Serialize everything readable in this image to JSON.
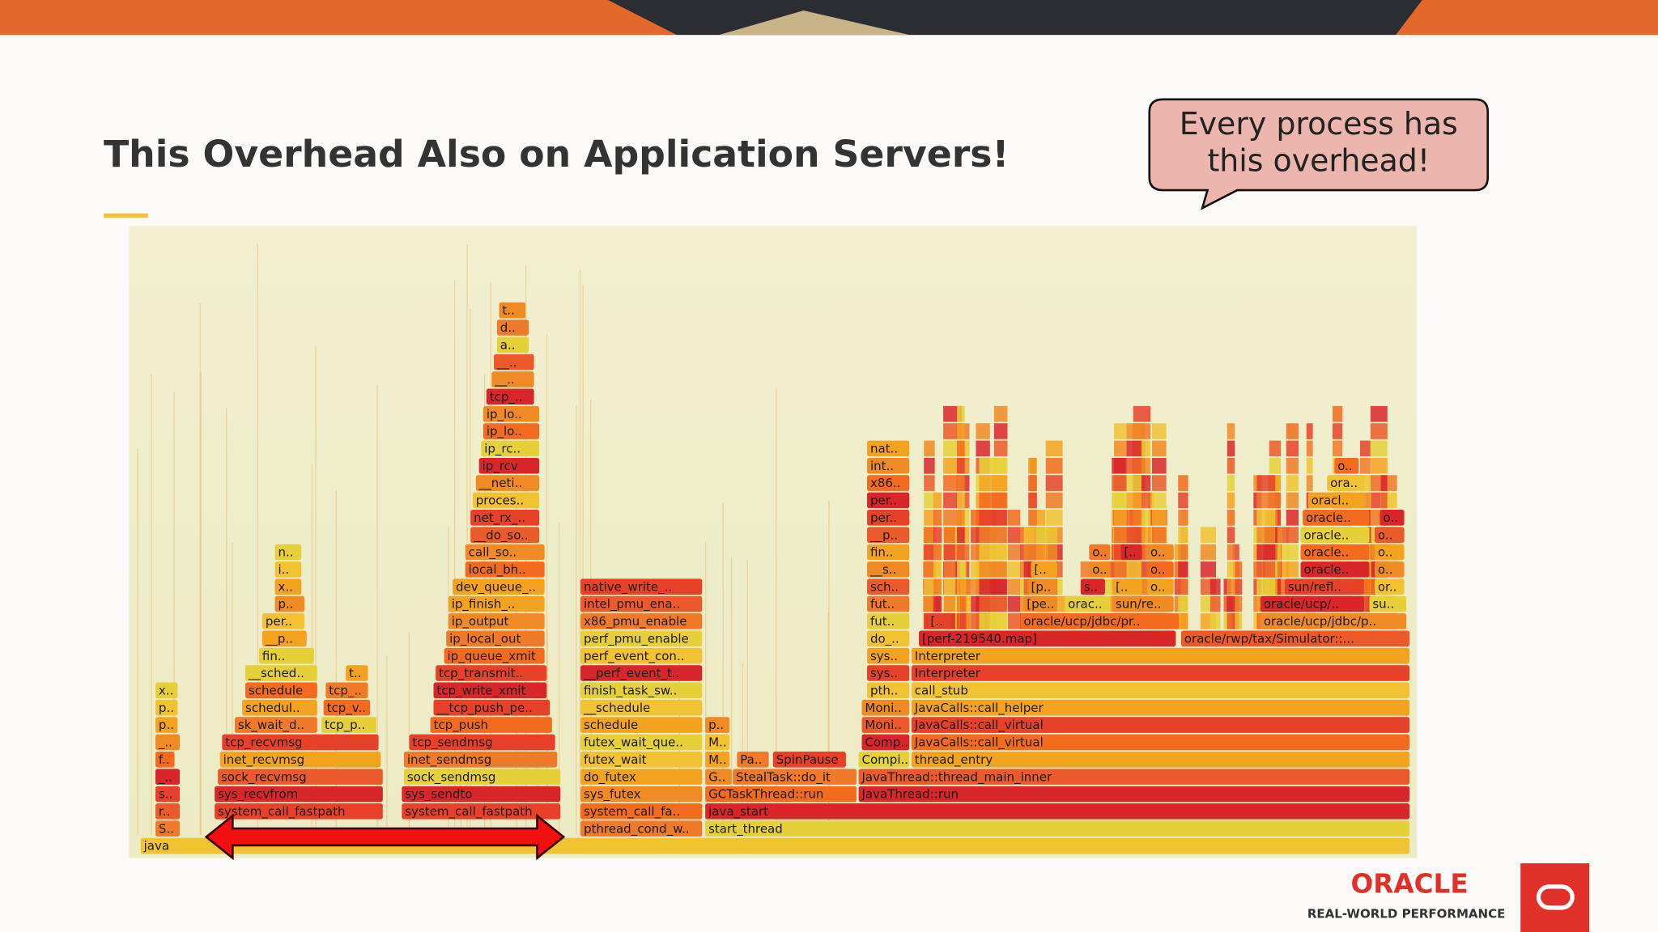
{
  "header": {
    "title": "This Overhead Also on Application Servers!"
  },
  "callout": {
    "lines": [
      "Every process has",
      "this overhead!"
    ]
  },
  "flamegraph": {
    "rows": [
      [
        "java"
      ],
      [
        "S..",
        "pthread_cond_w..",
        "start_thread"
      ],
      [
        "r..",
        "system_call_fastpath",
        "system_call_fastpath",
        "system_call_fa..",
        "java_start"
      ],
      [
        "s..",
        "sys_recvfrom",
        "sys_sendto",
        "sys_futex",
        "GCTaskThread::run",
        "JavaThread::run"
      ],
      [
        "_..",
        "sock_recvmsg",
        "sock_sendmsg",
        "do_futex",
        "G..",
        "StealTask::do_it",
        "JavaThread::thread_main_inner"
      ],
      [
        "f..",
        "inet_recvmsg",
        "inet_sendmsg",
        "futex_wait",
        "M..",
        "Pa..",
        "SpinPause",
        "Compi..",
        "thread_entry"
      ],
      [
        "_..",
        "tcp_recvmsg",
        "tcp_sendmsg",
        "futex_wait_que..",
        "M..",
        "Comp..",
        "JavaCalls::call_virtual"
      ],
      [
        "p..",
        "sk_wait_d..",
        "tcp_p..",
        "tcp_push",
        "schedule",
        "p..",
        "Moni..",
        "JavaCalls::call_virtual"
      ],
      [
        "p..",
        "schedul..",
        "tcp_v..",
        "__tcp_push_pe..",
        "__schedule",
        "Moni..",
        "JavaCalls::call_helper"
      ],
      [
        "x..",
        "schedule",
        "tcp_..",
        "tcp_write_xmit",
        "finish_task_sw..",
        "pth..",
        "call_stub"
      ],
      [
        "__sched..",
        "t..",
        "tcp_transmit..",
        "__perf_event_t..",
        "sys..",
        "Interpreter"
      ],
      [
        "fin..",
        "ip_queue_xmit",
        "perf_event_con..",
        "sys..",
        "Interpreter"
      ],
      [
        "__p..",
        "ip_local_out",
        "perf_pmu_enable",
        "do_..",
        "[perf-219540.map]",
        "oracle/rwp/tax/Simulator::..."
      ],
      [
        "per..",
        "ip_output",
        "x86_pmu_enable",
        "fut..",
        "[..",
        "oracle/ucp/jdbc/pr..",
        "oracle/ucp/jdbc/p.."
      ],
      [
        "p..",
        "ip_finish_..",
        "intel_pmu_ena..",
        "fut..",
        "[pe..",
        "orac..",
        "sun/re..",
        "oracle/ucp/..",
        "su.."
      ],
      [
        "x..",
        "dev_queue_..",
        "native_write_..",
        "sch..",
        "[p..",
        "s..",
        "[..",
        "o..",
        "sun/refl..",
        "or.."
      ],
      [
        "i..",
        "local_bh..",
        "__s..",
        "[..",
        "o..",
        "o..",
        "oracle..",
        "o.."
      ],
      [
        "n..",
        "call_so..",
        "fin..",
        "o..",
        "[..",
        "o..",
        "oracle..",
        "o.."
      ],
      [
        "__do_so..",
        "__p..",
        "oracle..",
        "o.."
      ],
      [
        "net_rx_..",
        "per..",
        "oracle..",
        "o.."
      ],
      [
        "proces..",
        "per..",
        "oracl.."
      ],
      [
        "__neti..",
        "x86..",
        "ora.."
      ],
      [
        "ip_rcv",
        "int..",
        "o.."
      ],
      [
        "ip_rc..",
        "nat.."
      ],
      [
        "ip_lo.."
      ],
      [
        "ip_lo.."
      ],
      [
        "tcp_.."
      ],
      [
        "__.."
      ],
      [
        "__.."
      ],
      [
        "a.."
      ],
      [
        "d.."
      ],
      [
        "t.."
      ]
    ]
  },
  "logo": {
    "brand": "ORACLE",
    "tagline": "REAL-WORLD PERFORMANCE"
  }
}
